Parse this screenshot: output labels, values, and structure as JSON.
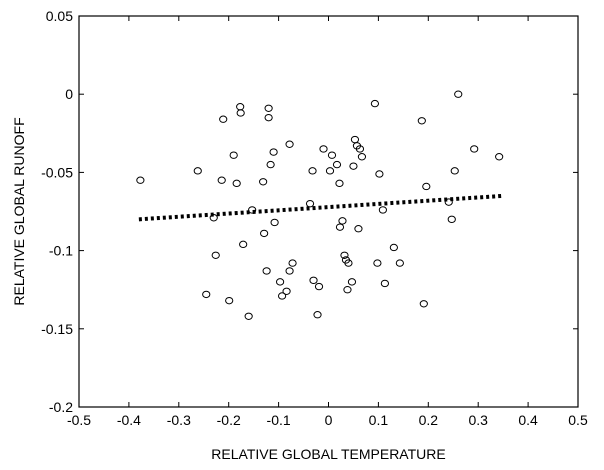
{
  "chart_data": {
    "type": "scatter",
    "xlabel": "RELATIVE GLOBAL TEMPERATURE",
    "ylabel": "RELATIVE GLOBAL RUNOFF",
    "xlim": [
      -0.5,
      0.5
    ],
    "ylim": [
      -0.2,
      0.05
    ],
    "xticks": [
      -0.5,
      -0.4,
      -0.3,
      -0.2,
      -0.1,
      0,
      0.1,
      0.2,
      0.3,
      0.4,
      0.5
    ],
    "yticks": [
      -0.2,
      -0.15,
      -0.1,
      -0.05,
      0,
      0.05
    ],
    "xtick_labels": [
      "-0.5",
      "-0.4",
      "-0.3",
      "-0.2",
      "-0.1",
      "0",
      "0.1",
      "0.2",
      "0.3",
      "0.4",
      "0.5"
    ],
    "ytick_labels": [
      "-0.2",
      "-0.15",
      "-0.1",
      "-0.05",
      "0",
      "0.05"
    ],
    "grid": false,
    "marker_color": "#000000",
    "trend_color": "#000000",
    "points": [
      [
        -0.377,
        -0.055
      ],
      [
        -0.262,
        -0.049
      ],
      [
        -0.245,
        -0.128
      ],
      [
        -0.23,
        -0.079
      ],
      [
        -0.226,
        -0.103
      ],
      [
        -0.214,
        -0.055
      ],
      [
        -0.211,
        -0.016
      ],
      [
        -0.199,
        -0.132
      ],
      [
        -0.19,
        -0.039
      ],
      [
        -0.184,
        -0.057
      ],
      [
        -0.177,
        -0.008
      ],
      [
        -0.176,
        -0.012
      ],
      [
        -0.171,
        -0.096
      ],
      [
        -0.16,
        -0.142
      ],
      [
        -0.153,
        -0.074
      ],
      [
        -0.131,
        -0.056
      ],
      [
        -0.129,
        -0.089
      ],
      [
        -0.124,
        -0.113
      ],
      [
        -0.12,
        -0.009
      ],
      [
        -0.12,
        -0.015
      ],
      [
        -0.116,
        -0.045
      ],
      [
        -0.11,
        -0.037
      ],
      [
        -0.108,
        -0.082
      ],
      [
        -0.097,
        -0.12
      ],
      [
        -0.093,
        -0.129
      ],
      [
        -0.084,
        -0.126
      ],
      [
        -0.078,
        -0.032
      ],
      [
        -0.078,
        -0.113
      ],
      [
        -0.072,
        -0.108
      ],
      [
        -0.037,
        -0.07
      ],
      [
        -0.032,
        -0.049
      ],
      [
        -0.03,
        -0.119
      ],
      [
        -0.022,
        -0.141
      ],
      [
        -0.019,
        -0.123
      ],
      [
        -0.01,
        -0.035
      ],
      [
        0.003,
        -0.049
      ],
      [
        0.007,
        -0.039
      ],
      [
        0.017,
        -0.045
      ],
      [
        0.022,
        -0.057
      ],
      [
        0.023,
        -0.085
      ],
      [
        0.028,
        -0.081
      ],
      [
        0.032,
        -0.103
      ],
      [
        0.035,
        -0.106
      ],
      [
        0.038,
        -0.125
      ],
      [
        0.04,
        -0.108
      ],
      [
        0.047,
        -0.12
      ],
      [
        0.05,
        -0.046
      ],
      [
        0.053,
        -0.029
      ],
      [
        0.057,
        -0.033
      ],
      [
        0.06,
        -0.086
      ],
      [
        0.063,
        -0.035
      ],
      [
        0.067,
        -0.04
      ],
      [
        0.093,
        -0.006
      ],
      [
        0.098,
        -0.108
      ],
      [
        0.102,
        -0.051
      ],
      [
        0.109,
        -0.074
      ],
      [
        0.113,
        -0.121
      ],
      [
        0.131,
        -0.098
      ],
      [
        0.143,
        -0.108
      ],
      [
        0.187,
        -0.017
      ],
      [
        0.191,
        -0.134
      ],
      [
        0.196,
        -0.059
      ],
      [
        0.241,
        -0.069
      ],
      [
        0.247,
        -0.08
      ],
      [
        0.253,
        -0.049
      ],
      [
        0.26,
        0.0
      ],
      [
        0.292,
        -0.035
      ],
      [
        0.342,
        -0.04
      ]
    ],
    "trend_line": {
      "x": [
        -0.38,
        0.35
      ],
      "y": [
        -0.08,
        -0.065
      ]
    }
  }
}
